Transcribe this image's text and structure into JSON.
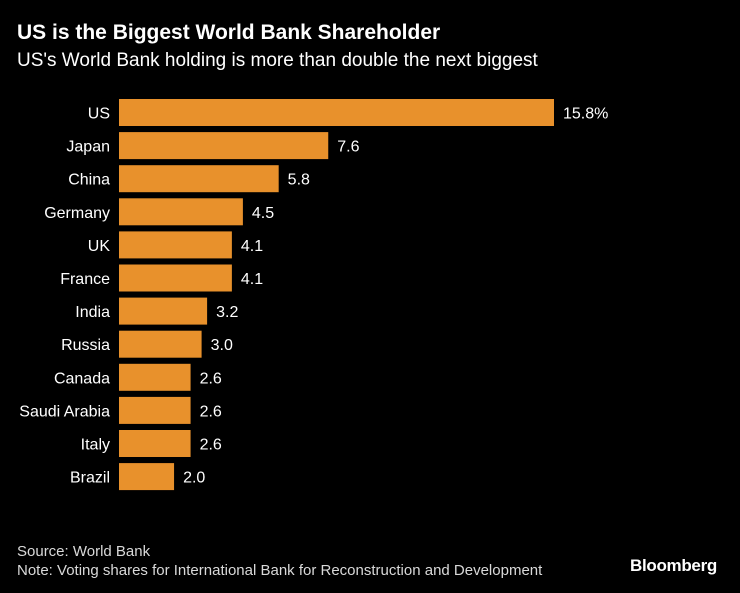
{
  "header": {
    "title": "US is the Biggest World Bank Shareholder",
    "subtitle": "US's World Bank holding is more than double the next biggest"
  },
  "footer": {
    "source": "Source: World Bank",
    "note": "Note: Voting shares for International Bank for Reconstruction and Development",
    "brand": "Bloomberg"
  },
  "colors": {
    "bar": "#e8912c",
    "background": "#000000",
    "text": "#ffffff"
  },
  "chart_data": {
    "type": "bar",
    "orientation": "horizontal",
    "title": "US is the Biggest World Bank Shareholder",
    "subtitle": "US's World Bank holding is more than double the next biggest",
    "categories": [
      "US",
      "Japan",
      "China",
      "Germany",
      "UK",
      "France",
      "India",
      "Russia",
      "Canada",
      "Saudi Arabia",
      "Italy",
      "Brazil"
    ],
    "values": [
      15.8,
      7.6,
      5.8,
      4.5,
      4.1,
      4.1,
      3.2,
      3.0,
      2.6,
      2.6,
      2.6,
      2.0
    ],
    "value_labels": [
      "15.8%",
      "7.6",
      "5.8",
      "4.5",
      "4.1",
      "4.1",
      "3.2",
      "3.0",
      "2.6",
      "2.6",
      "2.6",
      "2.0"
    ],
    "xlim": [
      0,
      15.8
    ],
    "grid": false,
    "legend": "none"
  }
}
